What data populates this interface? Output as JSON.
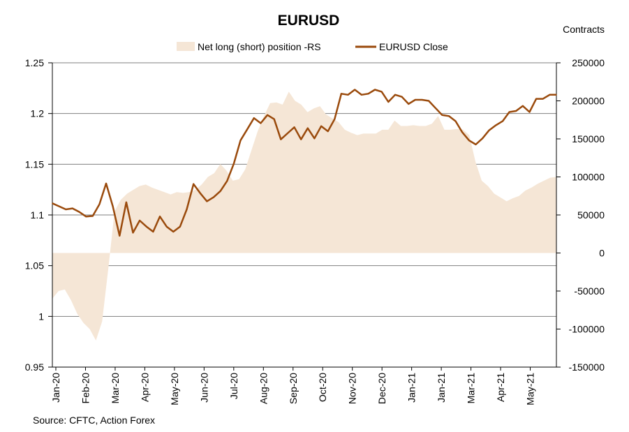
{
  "chart_data": {
    "type": "line",
    "title": "EURUSD",
    "right_axis_label": "Contracts",
    "source": "Source: CFTC, Action Forex",
    "x_tick_labels": [
      "Jan-20",
      "Feb-20",
      "Mar-20",
      "Apr-20",
      "May-20",
      "Jun-20",
      "Jul-20",
      "Aug-20",
      "Sep-20",
      "Oct-20",
      "Nov-20",
      "Dec-20",
      "Jan-21",
      "Jan-21",
      "Mar-21",
      "Apr-21",
      "May-21"
    ],
    "y_left": {
      "min": 0.95,
      "max": 1.25,
      "step": 0.05,
      "tick_labels": [
        "0.95",
        "1",
        "1.05",
        "1.1",
        "1.15",
        "1.2",
        "1.25"
      ]
    },
    "y_right": {
      "min": -150000,
      "max": 250000,
      "step": 50000,
      "tick_labels": [
        "-150000",
        "-100000",
        "-50000",
        "0",
        "50000",
        "100000",
        "150000",
        "200000",
        "250000"
      ]
    },
    "legend": {
      "placement": "top-center"
    },
    "grid": {
      "horizontal": true,
      "vertical": false
    },
    "colors": {
      "area": "#f5e6d6",
      "line": "#9a4a0c",
      "grid": "#7f7f7f"
    },
    "series": [
      {
        "name": "Net long (short) position -RS",
        "axis": "right",
        "kind": "area",
        "values": [
          -60000,
          -50000,
          -48000,
          -62000,
          -80000,
          -92000,
          -100000,
          -115000,
          -90000,
          -20000,
          55000,
          70000,
          78000,
          83000,
          88000,
          90000,
          86000,
          83000,
          80000,
          77000,
          80000,
          79000,
          80000,
          83000,
          90000,
          100000,
          105000,
          117000,
          108000,
          95000,
          97000,
          110000,
          135000,
          160000,
          180000,
          197000,
          198000,
          195000,
          212000,
          200000,
          195000,
          185000,
          190000,
          193000,
          182000,
          177000,
          172000,
          162000,
          158000,
          155000,
          157000,
          157000,
          157000,
          162000,
          162000,
          174000,
          167000,
          167000,
          168000,
          167000,
          167000,
          170000,
          180000,
          162000,
          162000,
          163000,
          162000,
          155000,
          120000,
          95000,
          88000,
          78000,
          73000,
          68000,
          72000,
          75000,
          82000,
          86000,
          91000,
          95000,
          99000,
          100000
        ]
      },
      {
        "name": "EURUSD Close",
        "axis": "left",
        "kind": "line",
        "values": [
          1.1115,
          1.1085,
          1.1055,
          1.1065,
          1.103,
          1.0985,
          1.099,
          1.1105,
          1.131,
          1.1085,
          1.0795,
          1.1125,
          1.0825,
          1.0945,
          1.0885,
          1.0835,
          1.0985,
          1.0885,
          1.0835,
          1.0885,
          1.1055,
          1.1305,
          1.1215,
          1.1135,
          1.1175,
          1.1235,
          1.1335,
          1.1505,
          1.1735,
          1.1845,
          1.1955,
          1.1905,
          1.1985,
          1.1945,
          1.1745,
          1.1805,
          1.1865,
          1.1745,
          1.1855,
          1.1755,
          1.1875,
          1.1825,
          1.1945,
          1.2195,
          1.2185,
          1.2235,
          1.2185,
          1.2195,
          1.2235,
          1.2215,
          1.2115,
          1.2185,
          1.2165,
          1.2095,
          1.2135,
          1.2135,
          1.2125,
          1.2055,
          1.1985,
          1.1975,
          1.1925,
          1.1815,
          1.1735,
          1.1695,
          1.1755,
          1.1835,
          1.1885,
          1.1925,
          1.2015,
          1.2025,
          1.2075,
          1.2015,
          1.2145,
          1.2145,
          1.2185,
          1.2185
        ]
      }
    ]
  }
}
